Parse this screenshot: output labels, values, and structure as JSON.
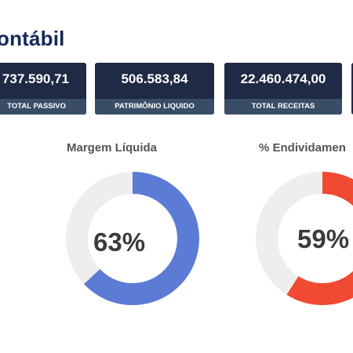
{
  "header": {
    "title": "ontábil"
  },
  "kpis": [
    {
      "value": "737.590,71",
      "label": "TOTAL PASSIVO"
    },
    {
      "value": "506.583,84",
      "label": "PATRIMÔNIO LIQUIDO"
    },
    {
      "value": "22.460.474,00",
      "label": "TOTAL RECEITAS"
    }
  ],
  "gauges": [
    {
      "title": "Margem Líquida",
      "percent_text": "63%",
      "value": 63,
      "color": "#5b7bd5"
    },
    {
      "title": "% Endividamen",
      "percent_text": "59%",
      "value": 59,
      "color": "#f04a32"
    }
  ],
  "colors": {
    "title": "#14285a",
    "kpi_bg": "#1f2a44",
    "kpi_label_bg": "#3a4d66",
    "track": "#eeeeee"
  }
}
